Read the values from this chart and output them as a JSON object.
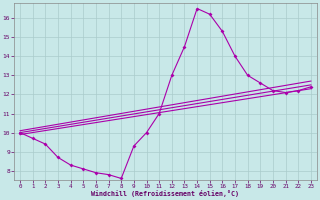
{
  "xlabel": "Windchill (Refroidissement éolien,°C)",
  "ylabel": "",
  "background_color": "#c8e8e8",
  "grid_color": "#aacccc",
  "line_color": "#aa00aa",
  "xlim": [
    -0.5,
    23.5
  ],
  "ylim": [
    7.5,
    16.8
  ],
  "xticks": [
    0,
    1,
    2,
    3,
    4,
    5,
    6,
    7,
    8,
    9,
    10,
    11,
    12,
    13,
    14,
    15,
    16,
    17,
    18,
    19,
    20,
    21,
    22,
    23
  ],
  "yticks": [
    8,
    9,
    10,
    11,
    12,
    13,
    14,
    15,
    16
  ],
  "line1_x": [
    0,
    1,
    2,
    3,
    4,
    5,
    6,
    7,
    8,
    9,
    10,
    11,
    12,
    13,
    14,
    15,
    16,
    17,
    18,
    19,
    20,
    21,
    22,
    23
  ],
  "line1_y": [
    10.0,
    9.7,
    9.4,
    8.7,
    8.3,
    8.1,
    7.9,
    7.8,
    7.6,
    9.3,
    10.0,
    11.0,
    13.0,
    14.5,
    16.5,
    16.2,
    15.3,
    14.0,
    13.0,
    12.6,
    12.2,
    12.1,
    12.2,
    12.4
  ],
  "line2_x": [
    0,
    23
  ],
  "line2_y": [
    9.9,
    12.3
  ],
  "line3_x": [
    0,
    23
  ],
  "line3_y": [
    10.0,
    12.5
  ],
  "line4_x": [
    0,
    23
  ],
  "line4_y": [
    10.1,
    12.7
  ]
}
